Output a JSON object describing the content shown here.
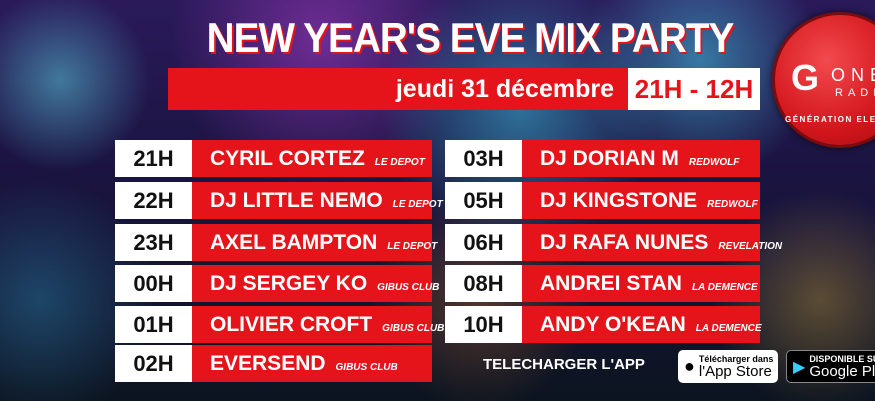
{
  "title": "NEW YEAR'S EVE MIX PARTY",
  "date": "jeudi 31 décembre",
  "hours": "21H - 12H",
  "logo": {
    "main": "G",
    "one": "ONE",
    "radio": "RADIO",
    "tagline": "GÉNÉRATION ELECTRO"
  },
  "left": [
    {
      "time": "21H",
      "dj": "CYRIL CORTEZ",
      "venue": "LE DEPOT"
    },
    {
      "time": "22H",
      "dj": "DJ LITTLE NEMO",
      "venue": "LE DEPOT"
    },
    {
      "time": "23H",
      "dj": "AXEL BAMPTON",
      "venue": "LE DEPOT"
    },
    {
      "time": "00H",
      "dj": "DJ SERGEY KO",
      "venue": "GIBUS CLUB"
    },
    {
      "time": "01H",
      "dj": "OLIVIER CROFT",
      "venue": "GIBUS CLUB"
    },
    {
      "time": "02H",
      "dj": "EVERSEND",
      "venue": "GIBUS CLUB"
    }
  ],
  "right": [
    {
      "time": "03H",
      "dj": "DJ DORIAN M",
      "venue": "REDWOLF"
    },
    {
      "time": "05H",
      "dj": "DJ KINGSTONE",
      "venue": "REDWOLF"
    },
    {
      "time": "06H",
      "dj": "DJ RAFA NUNES",
      "venue": "REVELATION"
    },
    {
      "time": "08H",
      "dj": "ANDREI STAN",
      "venue": "LA DEMENCE"
    },
    {
      "time": "10H",
      "dj": "ANDY O'KEAN",
      "venue": "LA DEMENCE"
    }
  ],
  "download": "TELECHARGER L'APP",
  "appstore": {
    "small": "Télécharger dans",
    "big": "l'App Store"
  },
  "googleplay": {
    "small": "DISPONIBLE SUR",
    "big": "Google Play"
  },
  "colors": {
    "red": "#e5141b"
  }
}
